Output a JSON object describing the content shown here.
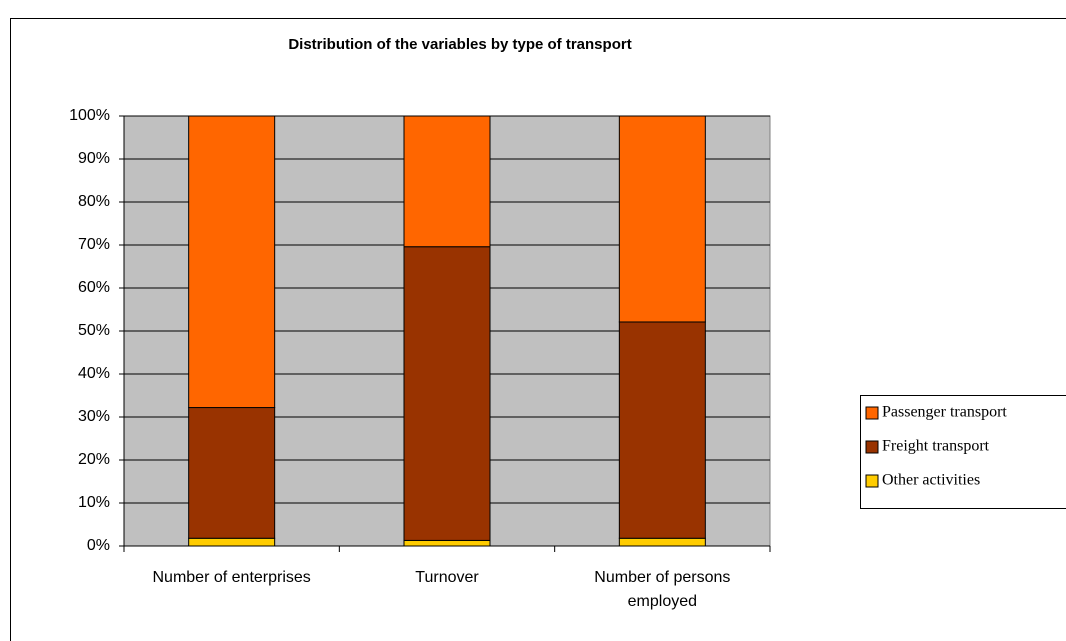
{
  "chart_data": {
    "type": "stacked_bar",
    "title": "Distribution of the variables by type of transport",
    "categories": [
      "Number of enterprises",
      "Turnover",
      "Number of persons employed"
    ],
    "series": [
      {
        "name": "Other activities",
        "color": "#ffcc00",
        "values": [
          1.8,
          1.3,
          1.8
        ]
      },
      {
        "name": "Freight transport",
        "color": "#993300",
        "values": [
          30.4,
          68.3,
          50.3
        ]
      },
      {
        "name": "Passenger transport",
        "color": "#ff6600",
        "values": [
          67.8,
          30.4,
          47.9
        ]
      }
    ],
    "ylim": [
      0,
      100
    ],
    "yticks": [
      {
        "value": 0,
        "label": "0%"
      },
      {
        "value": 10,
        "label": "10%"
      },
      {
        "value": 20,
        "label": "20%"
      },
      {
        "value": 30,
        "label": "30%"
      },
      {
        "value": 40,
        "label": "40%"
      },
      {
        "value": 50,
        "label": "50%"
      },
      {
        "value": 60,
        "label": "60%"
      },
      {
        "value": 70,
        "label": "70%"
      },
      {
        "value": 80,
        "label": "80%"
      },
      {
        "value": 90,
        "label": "90%"
      },
      {
        "value": 100,
        "label": "100%"
      }
    ],
    "grid": true,
    "legend": "right",
    "plot_background": "#c0c0c0"
  }
}
